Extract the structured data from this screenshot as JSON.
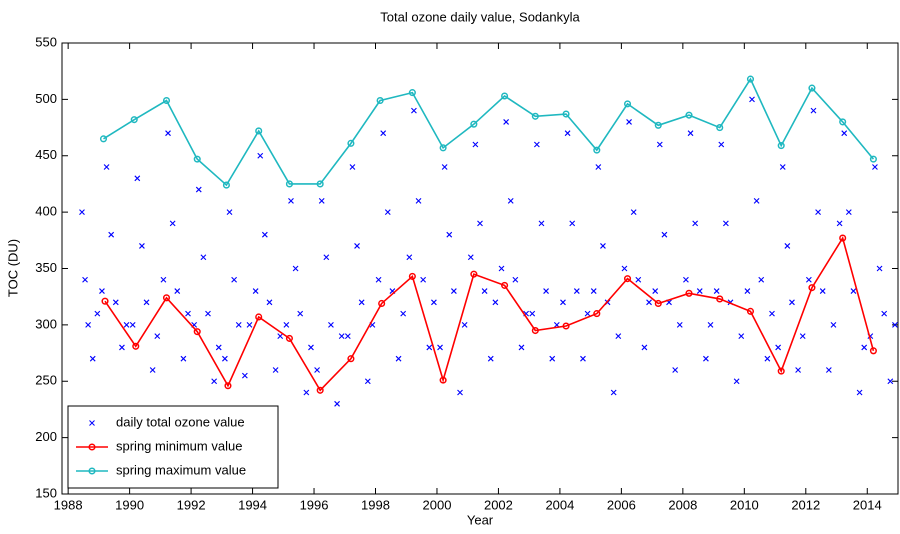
{
  "chart_data": {
    "type": "line",
    "title": "Total ozone daily value, Sodankyla",
    "xlabel": "Year",
    "ylabel": "TOC (DU)",
    "xlim": [
      1987.8,
      2015
    ],
    "ylim": [
      150,
      550
    ],
    "xticks": [
      1988,
      1990,
      1992,
      1994,
      1996,
      1998,
      2000,
      2002,
      2004,
      2006,
      2008,
      2010,
      2012,
      2014
    ],
    "yticks": [
      150,
      200,
      250,
      300,
      350,
      400,
      450,
      500,
      550
    ],
    "grid": false,
    "legend": "lower left",
    "series": [
      {
        "name": "daily total ozone value",
        "type": "scatter",
        "color": "#0000ff",
        "x": [
          1988.45,
          1988.55,
          1988.65,
          1988.8,
          1988.95,
          1989.1,
          1989.25,
          1989.4,
          1989.55,
          1989.75,
          1989.9,
          1990.1,
          1990.25,
          1990.4,
          1990.55,
          1990.75,
          1990.9,
          1991.1,
          1991.25,
          1991.4,
          1991.55,
          1991.75,
          1991.9,
          1992.1,
          1992.25,
          1992.4,
          1992.55,
          1992.75,
          1992.9,
          1993.1,
          1993.25,
          1993.4,
          1993.55,
          1993.75,
          1993.9,
          1994.1,
          1994.25,
          1994.4,
          1994.55,
          1994.75,
          1994.9,
          1995.1,
          1995.25,
          1995.4,
          1995.55,
          1995.75,
          1995.9,
          1996.1,
          1996.25,
          1996.4,
          1996.55,
          1996.75,
          1996.9,
          1997.1,
          1997.25,
          1997.4,
          1997.55,
          1997.75,
          1997.9,
          1998.1,
          1998.25,
          1998.4,
          1998.55,
          1998.75,
          1998.9,
          1999.1,
          1999.25,
          1999.4,
          1999.55,
          1999.75,
          1999.9,
          2000.1,
          2000.25,
          2000.4,
          2000.55,
          2000.75,
          2000.9,
          2001.1,
          2001.25,
          2001.4,
          2001.55,
          2001.75,
          2001.9,
          2002.1,
          2002.25,
          2002.4,
          2002.55,
          2002.75,
          2002.9,
          2003.1,
          2003.25,
          2003.4,
          2003.55,
          2003.75,
          2003.9,
          2004.1,
          2004.25,
          2004.4,
          2004.55,
          2004.75,
          2004.9,
          2005.1,
          2005.25,
          2005.4,
          2005.55,
          2005.75,
          2005.9,
          2006.1,
          2006.25,
          2006.4,
          2006.55,
          2006.75,
          2006.9,
          2007.1,
          2007.25,
          2007.4,
          2007.55,
          2007.75,
          2007.9,
          2008.1,
          2008.25,
          2008.4,
          2008.55,
          2008.75,
          2008.9,
          2009.1,
          2009.25,
          2009.4,
          2009.55,
          2009.75,
          2009.9,
          2010.1,
          2010.25,
          2010.4,
          2010.55,
          2010.75,
          2010.9,
          2011.1,
          2011.25,
          2011.4,
          2011.55,
          2011.75,
          2011.9,
          2012.1,
          2012.25,
          2012.4,
          2012.55,
          2012.75,
          2012.9,
          2013.1,
          2013.25,
          2013.4,
          2013.55,
          2013.75,
          2013.9,
          2014.1,
          2014.25,
          2014.4,
          2014.55,
          2014.75,
          2014.9
        ],
        "values": [
          400,
          340,
          300,
          270,
          310,
          330,
          440,
          380,
          320,
          280,
          300,
          300,
          430,
          370,
          320,
          260,
          290,
          340,
          470,
          390,
          330,
          270,
          310,
          300,
          420,
          360,
          310,
          250,
          280,
          270,
          400,
          340,
          300,
          255,
          300,
          330,
          450,
          380,
          320,
          260,
          290,
          300,
          410,
          350,
          310,
          240,
          280,
          260,
          410,
          360,
          300,
          230,
          290,
          290,
          440,
          370,
          320,
          250,
          300,
          340,
          470,
          400,
          330,
          270,
          310,
          360,
          490,
          410,
          340,
          280,
          320,
          280,
          440,
          380,
          330,
          240,
          300,
          360,
          460,
          390,
          330,
          270,
          320,
          350,
          480,
          410,
          340,
          280,
          310,
          310,
          460,
          390,
          330,
          270,
          300,
          320,
          470,
          390,
          330,
          270,
          310,
          330,
          440,
          370,
          320,
          240,
          290,
          350,
          480,
          400,
          340,
          280,
          320,
          330,
          460,
          380,
          320,
          260,
          300,
          340,
          470,
          390,
          330,
          270,
          300,
          330,
          460,
          390,
          320,
          250,
          290,
          330,
          500,
          410,
          340,
          270,
          310,
          280,
          440,
          370,
          320,
          260,
          290,
          340,
          490,
          400,
          330,
          260,
          300,
          390,
          470,
          400,
          330,
          240,
          280,
          290,
          440,
          350,
          310,
          250,
          300
        ]
      },
      {
        "name": "spring minimum value",
        "type": "line",
        "color": "#ff0000",
        "x": [
          1989.2,
          1990.2,
          1991.2,
          1992.2,
          1993.2,
          1994.2,
          1995.2,
          1996.2,
          1997.2,
          1998.2,
          1999.2,
          2000.2,
          2001.2,
          2002.2,
          2003.2,
          2004.2,
          2005.2,
          2006.2,
          2007.2,
          2008.2,
          2009.2,
          2010.2,
          2011.2,
          2012.2,
          2013.2,
          2014.2
        ],
        "values": [
          321,
          281,
          324,
          294,
          246,
          307,
          288,
          242,
          270,
          319,
          343,
          251,
          345,
          335,
          295,
          299,
          310,
          341,
          319,
          328,
          323,
          312,
          259,
          333,
          377,
          277
        ]
      },
      {
        "name": "spring maximum value",
        "type": "line",
        "color": "#1fb8c0",
        "x": [
          1989.15,
          1990.15,
          1991.2,
          1992.2,
          1993.15,
          1994.2,
          1995.2,
          1996.2,
          1997.2,
          1998.15,
          1999.2,
          2000.2,
          2001.2,
          2002.2,
          2003.2,
          2004.2,
          2005.2,
          2006.2,
          2007.2,
          2008.2,
          2009.2,
          2010.2,
          2011.2,
          2012.2,
          2013.2,
          2014.2
        ],
        "values": [
          465,
          482,
          499,
          447,
          424,
          472,
          425,
          425,
          461,
          499,
          506,
          457,
          478,
          503,
          485,
          487,
          455,
          496,
          477,
          486,
          475,
          518,
          459,
          510,
          480,
          447
        ]
      }
    ]
  }
}
